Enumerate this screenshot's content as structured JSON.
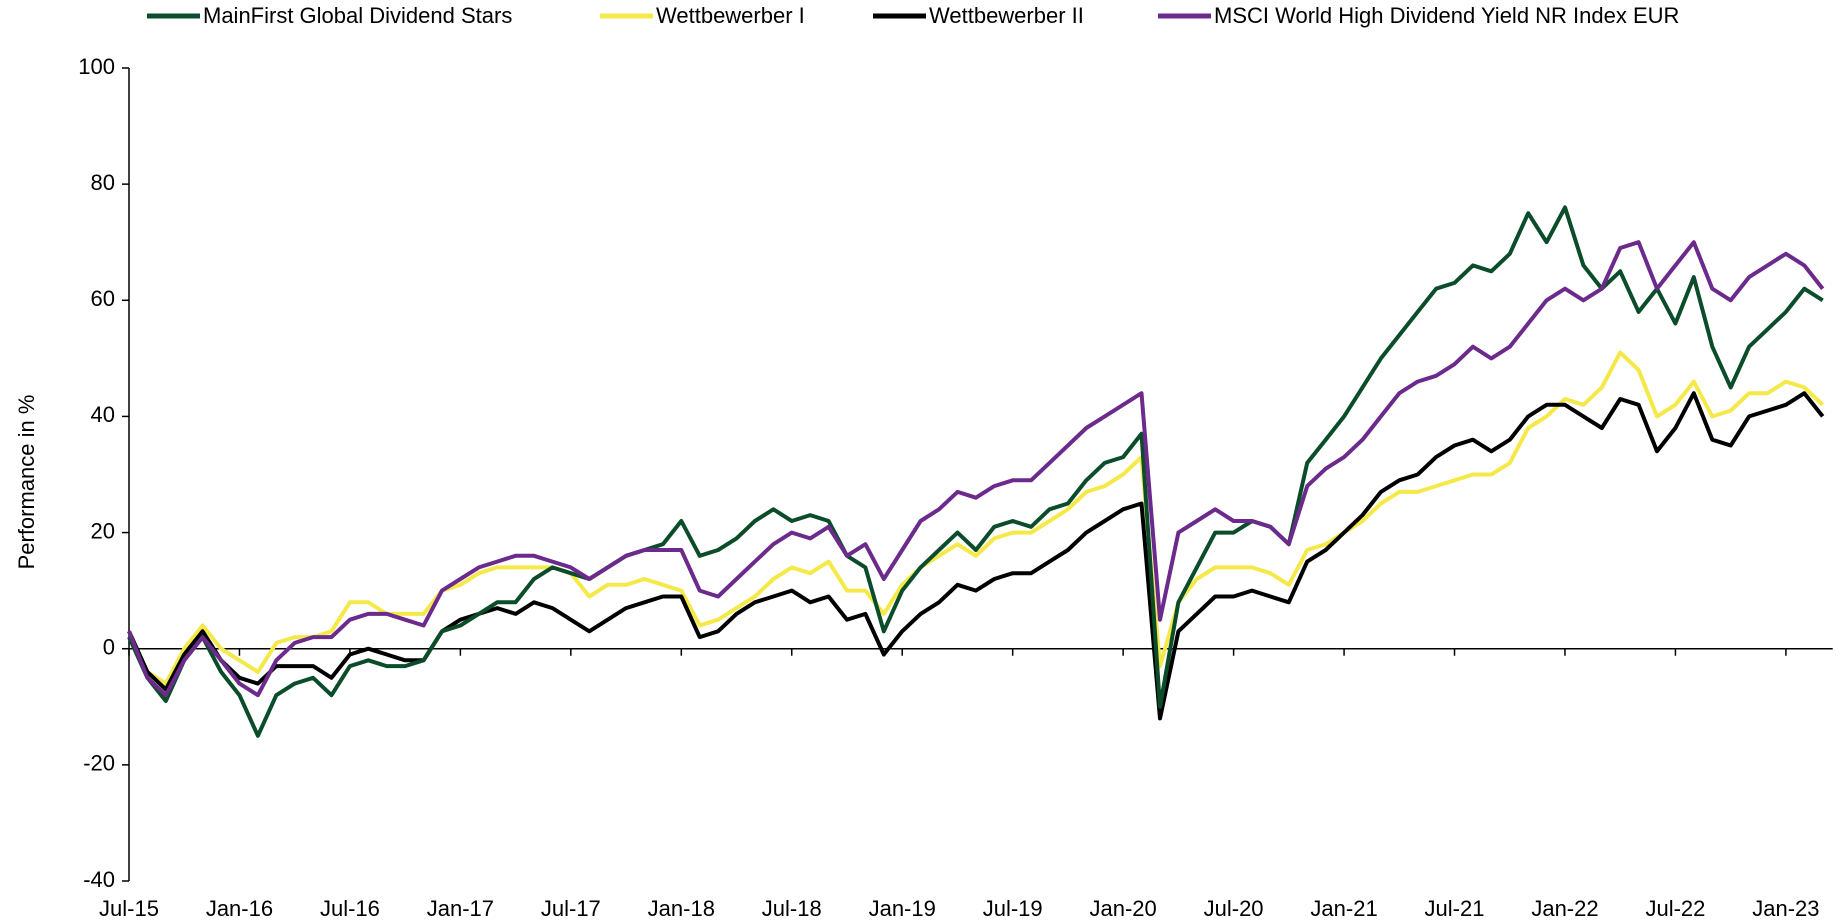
{
  "chart_data": {
    "type": "line",
    "y_label": "Performance in %",
    "categories": [
      "Jul-15",
      null,
      null,
      null,
      null,
      null,
      "Jan-16",
      null,
      null,
      null,
      null,
      null,
      "Jul-16",
      null,
      null,
      null,
      null,
      null,
      "Jan-17",
      null,
      null,
      null,
      null,
      null,
      "Jul-17",
      null,
      null,
      null,
      null,
      null,
      "Jan-18",
      null,
      null,
      null,
      null,
      null,
      "Jul-18",
      null,
      null,
      null,
      null,
      null,
      "Jan-19",
      null,
      null,
      null,
      null,
      null,
      "Jul-19",
      null,
      null,
      null,
      null,
      null,
      "Jan-20",
      null,
      null,
      null,
      null,
      null,
      "Jul-20",
      null,
      null,
      null,
      null,
      null,
      "Jan-21",
      null,
      null,
      null,
      null,
      null,
      "Jul-21",
      null,
      null,
      null,
      null,
      null,
      "Jan-22",
      null,
      null,
      null,
      null,
      null,
      "Jul-22",
      null,
      null,
      null,
      null,
      null,
      "Jan-23",
      null,
      null
    ],
    "series": [
      {
        "name": "MainFirst Global Dividend Stars",
        "color": "#0b4d2a",
        "values": [
          2,
          -5,
          -9,
          -2,
          2,
          -4,
          -8,
          -15,
          -8,
          -6,
          -5,
          -8,
          -3,
          -2,
          -3,
          -3,
          -2,
          3,
          4,
          6,
          8,
          8,
          12,
          14,
          13,
          12,
          14,
          16,
          17,
          18,
          22,
          16,
          17,
          19,
          22,
          24,
          22,
          23,
          22,
          16,
          14,
          3,
          10,
          14,
          17,
          20,
          17,
          21,
          22,
          21,
          24,
          25,
          29,
          32,
          33,
          37,
          -10,
          8,
          14,
          20,
          20,
          22,
          21,
          18,
          32,
          36,
          40,
          45,
          50,
          54,
          58,
          62,
          63,
          66,
          65,
          68,
          75,
          70,
          76,
          66,
          62,
          65,
          58,
          62,
          56,
          64,
          52,
          45,
          52,
          55,
          58,
          62,
          60
        ]
      },
      {
        "name": "Wettbewerber I",
        "color": "#f5e94a",
        "values": [
          3,
          -4,
          -6,
          0,
          4,
          0,
          -2,
          -4,
          1,
          2,
          2,
          3,
          8,
          8,
          6,
          6,
          6,
          10,
          11,
          13,
          14,
          14,
          14,
          14,
          13,
          9,
          11,
          11,
          12,
          11,
          10,
          4,
          5,
          7,
          9,
          12,
          14,
          13,
          15,
          10,
          10,
          6,
          11,
          14,
          16,
          18,
          16,
          19,
          20,
          20,
          22,
          24,
          27,
          28,
          30,
          33,
          -3,
          8,
          12,
          14,
          14,
          14,
          13,
          11,
          17,
          18,
          20,
          22,
          25,
          27,
          27,
          28,
          29,
          30,
          30,
          32,
          38,
          40,
          43,
          42,
          45,
          51,
          48,
          40,
          42,
          46,
          40,
          41,
          44,
          44,
          46,
          45,
          42
        ]
      },
      {
        "name": "Wettbewerber II",
        "color": "#000000",
        "values": [
          3,
          -4,
          -7,
          -1,
          3,
          -2,
          -5,
          -6,
          -3,
          -3,
          -3,
          -5,
          -1,
          0,
          -1,
          -2,
          -2,
          3,
          5,
          6,
          7,
          6,
          8,
          7,
          5,
          3,
          5,
          7,
          8,
          9,
          9,
          2,
          3,
          6,
          8,
          9,
          10,
          8,
          9,
          5,
          6,
          -1,
          3,
          6,
          8,
          11,
          10,
          12,
          13,
          13,
          15,
          17,
          20,
          22,
          24,
          25,
          -12,
          3,
          6,
          9,
          9,
          10,
          9,
          8,
          15,
          17,
          20,
          23,
          27,
          29,
          30,
          33,
          35,
          36,
          34,
          36,
          40,
          42,
          42,
          40,
          38,
          43,
          42,
          34,
          38,
          44,
          36,
          35,
          40,
          41,
          42,
          44,
          40
        ]
      },
      {
        "name": "MSCI World High Dividend Yield NR Index EUR",
        "color": "#6b2a8c",
        "values": [
          3,
          -5,
          -8,
          -2,
          2,
          -2,
          -6,
          -8,
          -2,
          1,
          2,
          2,
          5,
          6,
          6,
          5,
          4,
          10,
          12,
          14,
          15,
          16,
          16,
          15,
          14,
          12,
          14,
          16,
          17,
          17,
          17,
          10,
          9,
          12,
          15,
          18,
          20,
          19,
          21,
          16,
          18,
          12,
          17,
          22,
          24,
          27,
          26,
          28,
          29,
          29,
          32,
          35,
          38,
          40,
          42,
          44,
          5,
          20,
          22,
          24,
          22,
          22,
          21,
          18,
          28,
          31,
          33,
          36,
          40,
          44,
          46,
          47,
          49,
          52,
          50,
          52,
          56,
          60,
          62,
          60,
          62,
          69,
          70,
          62,
          66,
          70,
          62,
          60,
          64,
          66,
          68,
          66,
          62
        ]
      }
    ],
    "ylim": [
      -40,
      100
    ],
    "yticks": [
      -40,
      -20,
      0,
      20,
      40,
      60,
      80,
      100
    ]
  }
}
